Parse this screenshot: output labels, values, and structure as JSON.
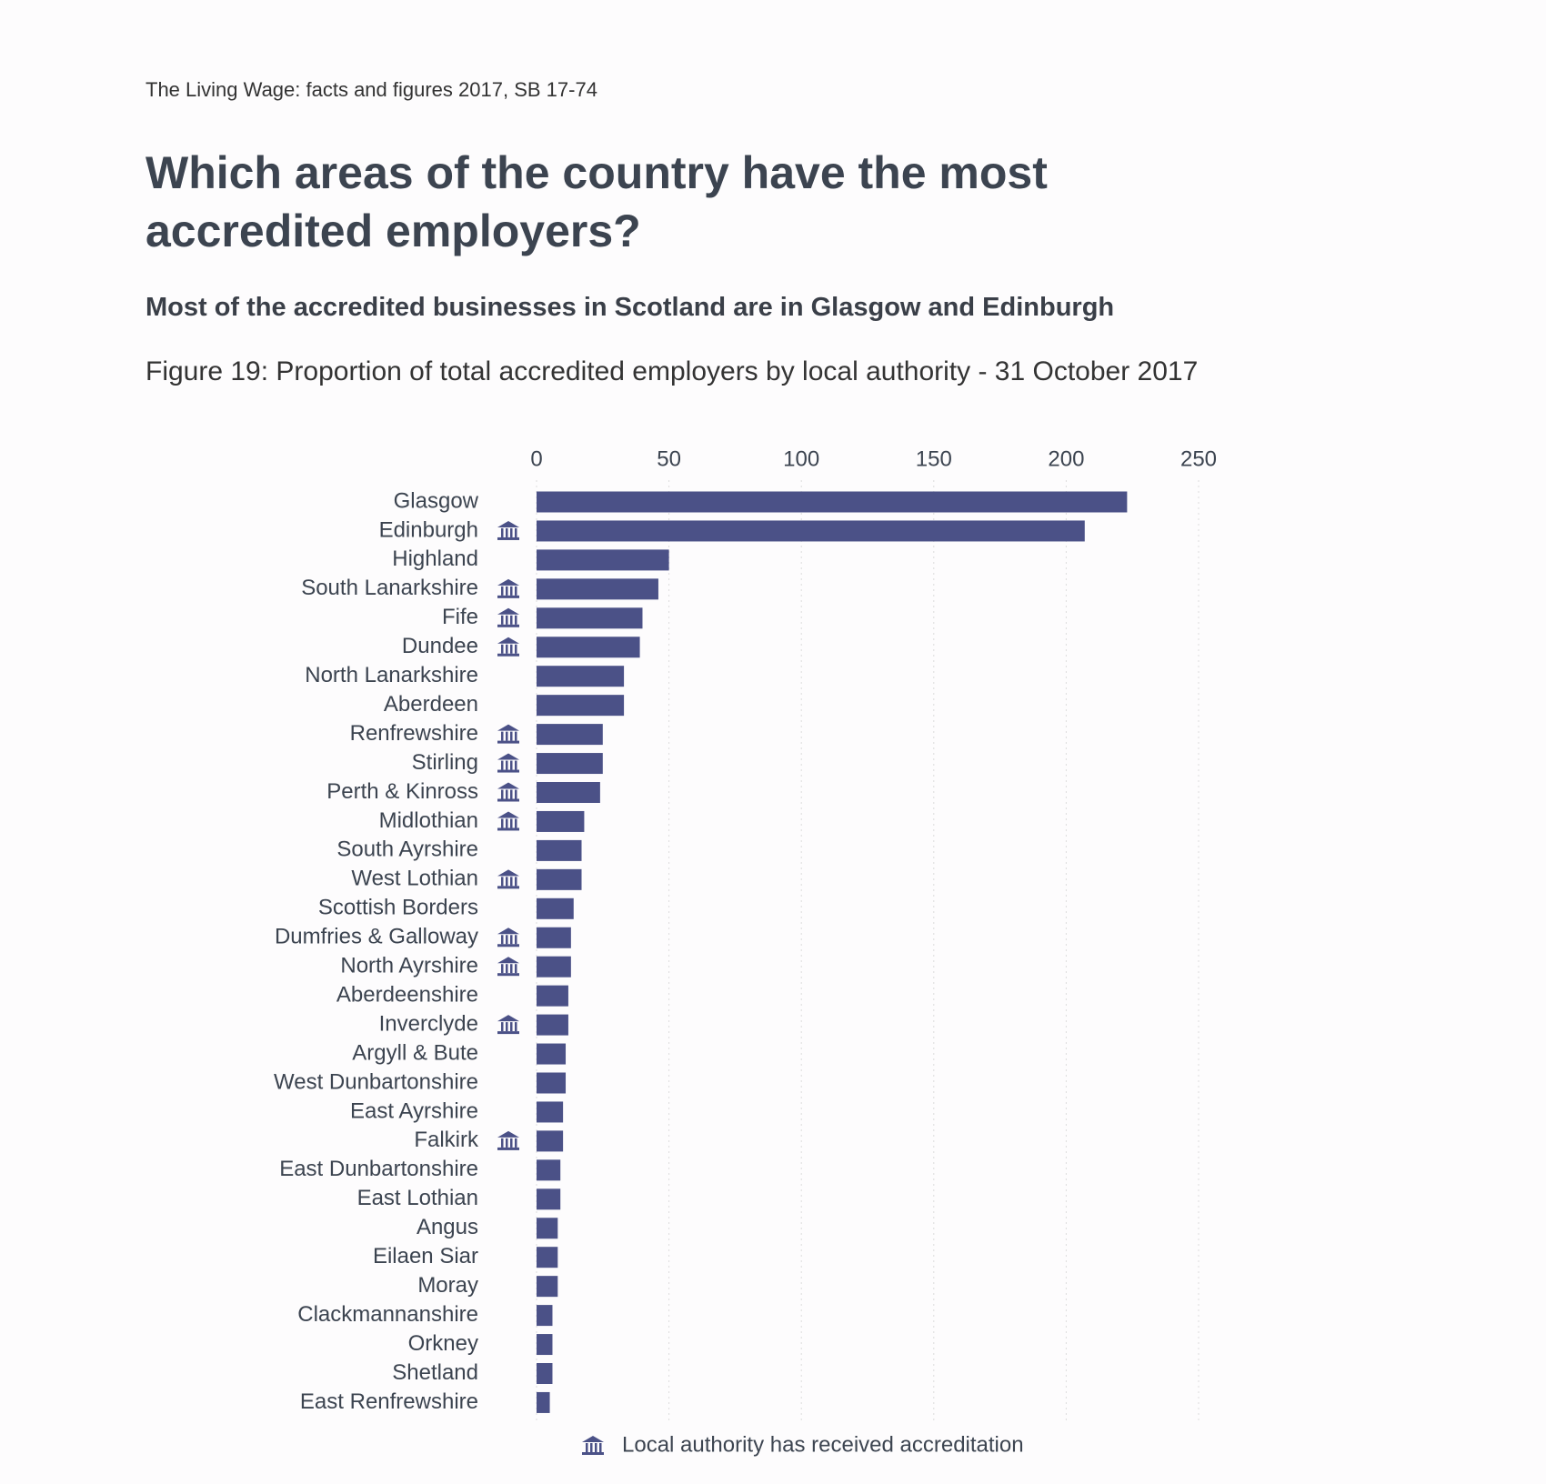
{
  "chart_data": {
    "type": "bar",
    "orientation": "horizontal",
    "source": "The Living Wage: facts and figures 2017, SB 17-74",
    "title": "Which areas of the country have the most accredited employers?",
    "subtitle": "Most of the accredited businesses in Scotland are in Glasgow and Edinburgh",
    "caption": "Figure 19: Proportion of total accredited employers by local authority - 31 October 2017",
    "categories": [
      "Glasgow",
      "Edinburgh",
      "Highland",
      "South Lanarkshire",
      "Fife",
      "Dundee",
      "North Lanarkshire",
      "Aberdeen",
      "Renfrewshire",
      "Stirling",
      "Perth & Kinross",
      "Midlothian",
      "South Ayrshire",
      "West Lothian",
      "Scottish Borders",
      "Dumfries & Galloway",
      "North Ayrshire",
      "Aberdeenshire",
      "Inverclyde",
      "Argyll & Bute",
      "West Dunbartonshire",
      "East Ayrshire",
      "Falkirk",
      "East Dunbartonshire",
      "East Lothian",
      "Angus",
      "Eilaen Siar",
      "Moray",
      "Clackmannanshire",
      "Orkney",
      "Shetland",
      "East Renfrewshire"
    ],
    "values": [
      223,
      207,
      50,
      46,
      40,
      39,
      33,
      33,
      25,
      25,
      24,
      18,
      17,
      17,
      14,
      13,
      13,
      12,
      12,
      11,
      11,
      10,
      10,
      9,
      9,
      8,
      8,
      8,
      6,
      6,
      6,
      5
    ],
    "accredited": [
      false,
      true,
      false,
      true,
      true,
      true,
      false,
      false,
      true,
      true,
      true,
      true,
      false,
      true,
      false,
      true,
      true,
      false,
      true,
      false,
      false,
      false,
      true,
      false,
      false,
      false,
      false,
      false,
      false,
      false,
      false,
      false
    ],
    "legend_label": "Local authority has received accreditation",
    "color": "#4b5187",
    "xlim": [
      0,
      250
    ],
    "xticks": [
      0,
      50,
      100,
      150,
      200,
      250
    ],
    "grid": true
  }
}
